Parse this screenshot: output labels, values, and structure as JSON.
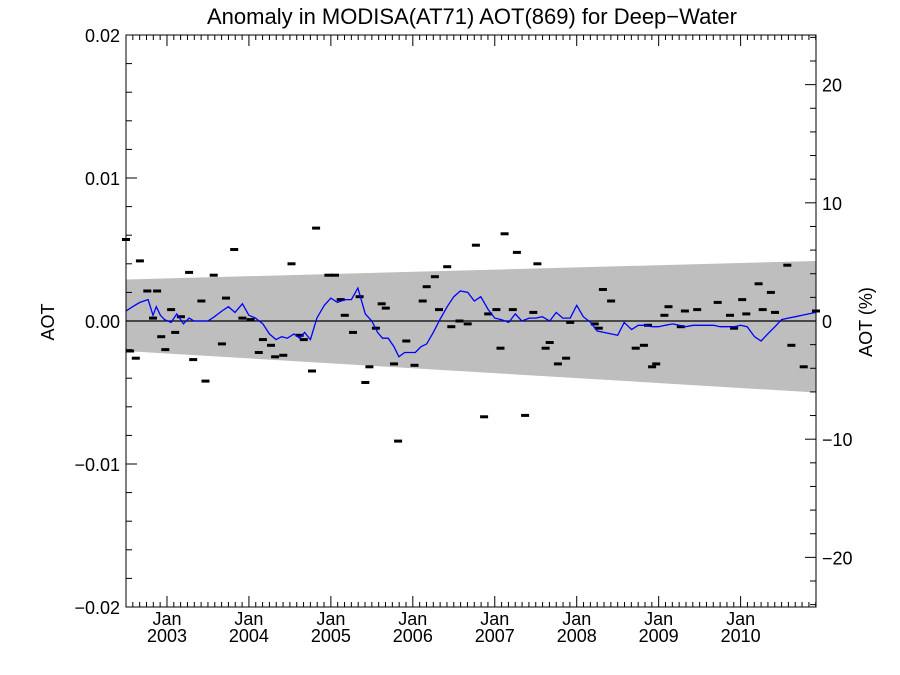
{
  "chart_data": {
    "type": "scatter",
    "title": "Anomaly in MODISA(AT71) AOT(869) for Deep−Water",
    "ylabel": "AOT",
    "y2label": "AOT (%)",
    "xlim": [
      2002.5,
      2010.92
    ],
    "ylim": [
      -0.02,
      0.02
    ],
    "y2lim": [
      -24.2,
      24.2
    ],
    "yticks": [
      {
        "value": 0.02,
        "label": "0.02"
      },
      {
        "value": 0.01,
        "label": "0.01"
      },
      {
        "value": 0.0,
        "label": "0.00"
      },
      {
        "value": -0.01,
        "label": "−0.01"
      },
      {
        "value": -0.02,
        "label": "−0.02"
      }
    ],
    "y2ticks": [
      {
        "value": 20,
        "label": "20"
      },
      {
        "value": 10,
        "label": "10"
      },
      {
        "value": 0,
        "label": "0"
      },
      {
        "value": -10,
        "label": "−10"
      },
      {
        "value": -20,
        "label": "−20"
      }
    ],
    "xticks": [
      {
        "value": 2003.0,
        "month": "Jan",
        "year": "2003"
      },
      {
        "value": 2004.0,
        "month": "Jan",
        "year": "2004"
      },
      {
        "value": 2005.0,
        "month": "Jan",
        "year": "2005"
      },
      {
        "value": 2006.0,
        "month": "Jan",
        "year": "2006"
      },
      {
        "value": 2007.0,
        "month": "Jan",
        "year": "2007"
      },
      {
        "value": 2008.0,
        "month": "Jan",
        "year": "2008"
      },
      {
        "value": 2009.0,
        "month": "Jan",
        "year": "2009"
      },
      {
        "value": 2010.0,
        "month": "Jan",
        "year": "2010"
      }
    ],
    "uncertainty_band": {
      "x": [
        2002.5,
        2010.92
      ],
      "upper": [
        0.0029,
        0.0042
      ],
      "lower": [
        -0.0021,
        -0.005
      ],
      "color": "#bebebe"
    },
    "zero_line": 0.0,
    "series": [
      {
        "kind": "points",
        "marker": "dash",
        "color": "#000000",
        "x": [
          2002.5,
          2002.55,
          2002.62,
          2002.67,
          2002.76,
          2002.83,
          2002.88,
          2002.93,
          2002.98,
          2003.05,
          2003.1,
          2003.17,
          2003.27,
          2003.32,
          2003.42,
          2003.47,
          2003.57,
          2003.67,
          2003.72,
          2003.82,
          2003.92,
          2004.02,
          2004.12,
          2004.17,
          2004.27,
          2004.32,
          2004.42,
          2004.52,
          2004.62,
          2004.67,
          2004.77,
          2004.82,
          2004.97,
          2005.05,
          2005.12,
          2005.17,
          2005.27,
          2005.35,
          2005.42,
          2005.47,
          2005.55,
          2005.62,
          2005.67,
          2005.77,
          2005.82,
          2005.92,
          2006.02,
          2006.12,
          2006.17,
          2006.27,
          2006.32,
          2006.42,
          2006.47,
          2006.57,
          2006.67,
          2006.77,
          2006.87,
          2006.92,
          2007.02,
          2007.07,
          2007.12,
          2007.22,
          2007.27,
          2007.37,
          2007.47,
          2007.52,
          2007.62,
          2007.67,
          2007.77,
          2007.87,
          2007.92,
          2008.22,
          2008.27,
          2008.32,
          2008.42,
          2008.72,
          2008.82,
          2008.87,
          2008.92,
          2008.97,
          2009.07,
          2009.12,
          2009.27,
          2009.32,
          2009.47,
          2009.72,
          2009.87,
          2009.92,
          2010.02,
          2010.07,
          2010.22,
          2010.27,
          2010.37,
          2010.42,
          2010.57,
          2010.62,
          2010.77,
          2010.92
        ],
        "y": [
          0.0057,
          -0.0021,
          -0.0026,
          0.0042,
          0.0021,
          0.0002,
          0.0021,
          -0.0011,
          -0.002,
          0.0008,
          -0.0008,
          0.0003,
          0.0034,
          -0.0027,
          0.0014,
          -0.0042,
          0.0032,
          -0.0016,
          0.0016,
          0.005,
          0.0002,
          0.0001,
          -0.0022,
          -0.0013,
          -0.0017,
          -0.0025,
          -0.0024,
          0.004,
          -0.001,
          -0.0013,
          -0.0035,
          0.0065,
          0.0032,
          0.0032,
          0.0015,
          0.0004,
          -0.0008,
          0.0017,
          -0.0043,
          -0.0032,
          -0.0005,
          0.0012,
          0.0009,
          -0.003,
          -0.0084,
          -0.0014,
          -0.0031,
          0.0014,
          0.0024,
          0.0031,
          0.0008,
          0.0038,
          -0.0004,
          0.0,
          -0.0002,
          0.0053,
          -0.0067,
          0.0005,
          0.0008,
          -0.0019,
          0.0061,
          0.0008,
          0.0048,
          -0.0066,
          0.0006,
          0.004,
          -0.0019,
          -0.0015,
          -0.003,
          -0.0026,
          -0.0001,
          -0.0002,
          -0.0005,
          0.0022,
          0.0014,
          -0.0019,
          -0.0017,
          -0.0003,
          -0.0032,
          -0.003,
          0.0004,
          0.001,
          -0.0004,
          0.0007,
          0.0008,
          0.0013,
          0.0004,
          -0.0005,
          0.0015,
          0.0005,
          0.0026,
          0.0008,
          0.002,
          0.0006,
          0.0039,
          -0.0017,
          -0.0032,
          0.0007
        ]
      },
      {
        "kind": "line",
        "color": "#0000ff",
        "x": [
          2002.5,
          2002.58,
          2002.67,
          2002.77,
          2002.83,
          2002.87,
          2002.92,
          2002.97,
          2003.05,
          2003.12,
          2003.2,
          2003.27,
          2003.33,
          2003.42,
          2003.5,
          2003.58,
          2003.67,
          2003.75,
          2003.83,
          2003.92,
          2004.0,
          2004.08,
          2004.17,
          2004.25,
          2004.33,
          2004.4,
          2004.47,
          2004.55,
          2004.62,
          2004.68,
          2004.75,
          2004.83,
          2004.92,
          2005.0,
          2005.08,
          2005.17,
          2005.25,
          2005.33,
          2005.42,
          2005.5,
          2005.57,
          2005.63,
          2005.7,
          2005.77,
          2005.83,
          2005.9,
          2005.97,
          2006.03,
          2006.1,
          2006.17,
          2006.25,
          2006.33,
          2006.42,
          2006.5,
          2006.58,
          2006.67,
          2006.75,
          2006.83,
          2006.92,
          2007.0,
          2007.08,
          2007.17,
          2007.25,
          2007.33,
          2007.42,
          2007.5,
          2007.58,
          2007.67,
          2007.75,
          2007.83,
          2007.92,
          2008.0,
          2008.08,
          2008.17,
          2008.25,
          2008.33,
          2008.42,
          2008.5,
          2008.58,
          2008.67,
          2008.75,
          2008.83,
          2008.92,
          2009.0,
          2009.08,
          2009.17,
          2009.25,
          2009.33,
          2009.42,
          2009.5,
          2009.58,
          2009.67,
          2009.75,
          2009.83,
          2009.92,
          2010.0,
          2010.08,
          2010.17,
          2010.25,
          2010.33,
          2010.42,
          2010.5,
          2010.58,
          2010.67,
          2010.75,
          2010.83,
          2010.92
        ],
        "y": [
          0.0007,
          0.001,
          0.0013,
          0.0015,
          0.0004,
          0.001,
          0.0004,
          0.0001,
          -0.0001,
          0.0005,
          -0.0002,
          0.0002,
          0.0,
          0.0,
          0.0,
          0.0003,
          0.0007,
          0.001,
          0.0006,
          0.0012,
          0.0004,
          0.0002,
          -0.0002,
          -0.0009,
          -0.0013,
          -0.0011,
          -0.0012,
          -0.0009,
          -0.0012,
          -0.0008,
          -0.0013,
          0.0002,
          0.0011,
          0.0016,
          0.0013,
          0.0015,
          0.0015,
          0.0023,
          0.0005,
          0.0,
          -0.0008,
          -0.0012,
          -0.0012,
          -0.0018,
          -0.0025,
          -0.0022,
          -0.0022,
          -0.0022,
          -0.0018,
          -0.0016,
          -0.0008,
          0.0001,
          0.001,
          0.0017,
          0.0021,
          0.002,
          0.0014,
          0.0017,
          0.0008,
          0.0002,
          0.0001,
          -0.0001,
          0.0005,
          0.0,
          0.0002,
          0.0002,
          0.0003,
          0.0,
          0.0006,
          0.0002,
          0.0002,
          0.0011,
          0.0003,
          -0.0001,
          -0.0007,
          -0.0008,
          -0.0009,
          -0.001,
          -0.0001,
          -0.0006,
          -0.0003,
          -0.0003,
          -0.0004,
          -0.0004,
          -0.0003,
          -0.0002,
          -0.0003,
          -0.0004,
          -0.0003,
          -0.0003,
          -0.0003,
          -0.0003,
          -0.0004,
          -0.0004,
          -0.0004,
          -0.0003,
          -0.0004,
          -0.0011,
          -0.0014,
          -0.0009,
          -0.0004,
          0.0001,
          0.0002,
          0.0003,
          0.0004,
          0.0005,
          0.0006
        ]
      }
    ]
  }
}
